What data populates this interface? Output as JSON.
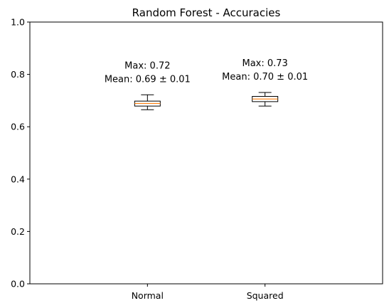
{
  "chart_data": {
    "type": "box",
    "title": "Random Forest - Accuracies",
    "xlabel": "",
    "ylabel": "",
    "ylim": [
      0,
      1.0
    ],
    "yticks": [
      0.0,
      0.2,
      0.4,
      0.6,
      0.8,
      1.0
    ],
    "ytick_labels": [
      "0.0",
      "0.2",
      "0.4",
      "0.6",
      "0.8",
      "1.0"
    ],
    "categories": [
      "Normal",
      "Squared"
    ],
    "boxes": [
      {
        "category": "Normal",
        "whisker_low": 0.665,
        "q1": 0.679,
        "median": 0.689,
        "q3": 0.698,
        "whisker_high": 0.722,
        "annotation_max": "Max: 0.72",
        "annotation_mean": "Mean: 0.69 ± 0.01"
      },
      {
        "category": "Squared",
        "whisker_low": 0.679,
        "q1": 0.696,
        "median": 0.706,
        "q3": 0.716,
        "whisker_high": 0.731,
        "annotation_max": "Max: 0.73",
        "annotation_mean": "Mean: 0.70 ± 0.01"
      }
    ],
    "grid": false,
    "legend": "none",
    "colors": {
      "box_edge": "#000000",
      "median_line": "#ff7f0e",
      "box_fill": "#ffffff",
      "axes": "#000000"
    }
  }
}
